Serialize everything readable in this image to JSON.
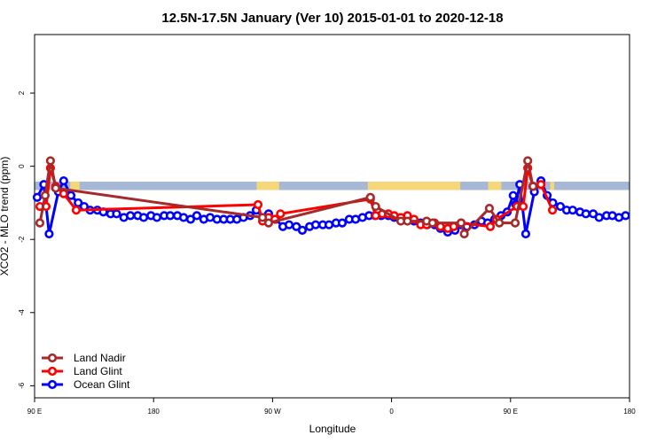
{
  "chart_data": {
    "type": "line",
    "title": "12.5N-17.5N January (Ver 10)   2015-01-01 to 2020-12-18",
    "x_label": "Longitude",
    "y_label": "XCO2 - MLO trend (ppm)",
    "xlim": [
      90,
      540
    ],
    "ylim": [
      -6.33,
      3.6
    ],
    "xticks": [
      {
        "value": 90,
        "label": "90 E"
      },
      {
        "value": 180,
        "label": "180"
      },
      {
        "value": 270,
        "label": "90 W"
      },
      {
        "value": 360,
        "label": "0"
      },
      {
        "value": 450,
        "label": "90 E"
      },
      {
        "value": 540,
        "label": "180"
      }
    ],
    "yticks": [
      2,
      0,
      -2,
      -4,
      -6
    ],
    "legend": "bottom-left",
    "mask_band": {
      "ylim": [
        -0.65,
        -0.42
      ],
      "color": "#a7b8d6",
      "land_color": "#f5d77a",
      "land": [
        [
          117,
          124
        ],
        [
          258,
          275
        ],
        [
          342,
          412
        ],
        [
          433,
          443
        ],
        [
          480,
          483
        ]
      ]
    },
    "series": [
      {
        "name": "Land Nadir",
        "color": "#a52a2a",
        "x": [
          94,
          98,
          102,
          106,
          262.4,
          267,
          344,
          348,
          367,
          372,
          386.5,
          391,
          412.6,
          415,
          434,
          441.5,
          453.5,
          463,
          467
        ],
        "values": [
          -1.55,
          -0.8,
          0.15,
          -0.6,
          -1.4,
          -1.55,
          -0.85,
          -1.1,
          -1.5,
          -1.5,
          -1.5,
          -1.55,
          -1.55,
          -1.85,
          -1.15,
          -1.55,
          -1.55,
          0.15,
          -0.55
        ]
      },
      {
        "name": "Land Glint",
        "color": "#ff0000",
        "x": [
          94,
          98.7,
          102,
          106,
          112,
          121.5,
          259,
          262.4,
          267,
          271.8,
          276,
          344,
          348,
          353,
          357.6,
          362,
          367,
          372,
          377,
          382,
          386.5,
          392.5,
          397,
          402.5,
          407,
          412.6,
          434.7,
          439.4,
          454.9,
          459.6,
          463,
          467,
          473,
          481.7
        ],
        "values": [
          -1.1,
          -1.1,
          -0.05,
          -0.55,
          -0.75,
          -1.2,
          -1.05,
          -1.5,
          -1.4,
          -1.45,
          -1.3,
          -0.9,
          -1.35,
          -1.3,
          -1.3,
          -1.35,
          -1.4,
          -1.35,
          -1.45,
          -1.6,
          -1.6,
          -1.55,
          -1.65,
          -1.7,
          -1.65,
          -1.55,
          -1.65,
          -1.45,
          -1.1,
          -1.1,
          -0.05,
          -0.55,
          -0.5,
          -1.2
        ]
      },
      {
        "name": "Ocean Glint",
        "color": "#0000ff",
        "x": [
          92,
          97,
          101,
          108,
          112,
          117.5,
          123,
          127.5,
          132,
          137.5,
          142,
          147.5,
          152,
          157.5,
          162.5,
          168,
          172.5,
          178,
          182.5,
          188,
          192.6,
          198,
          202.7,
          208,
          212.7,
          218,
          222.8,
          228,
          233,
          238,
          243,
          248,
          253,
          257.7,
          262.4,
          267,
          272.4,
          277.8,
          282.5,
          288,
          292.5,
          298,
          302.6,
          308,
          312.7,
          318,
          322.7,
          328,
          332.8,
          338,
          343,
          347.6,
          352.2,
          357.6,
          362,
          367,
          372,
          377,
          382,
          387,
          392.5,
          397,
          402.5,
          408,
          412.6,
          417,
          422.7,
          428,
          432.7,
          438,
          442.8,
          447.5,
          452,
          454,
          457,
          461.5,
          468,
          473,
          477.7,
          482,
          487.7,
          492.4,
          497,
          502.5,
          507,
          512.5,
          517,
          522.6,
          527,
          532,
          537
        ],
        "values": [
          -0.85,
          -0.5,
          -1.85,
          -0.7,
          -0.4,
          -0.8,
          -1.0,
          -1.1,
          -1.2,
          -1.2,
          -1.25,
          -1.3,
          -1.3,
          -1.4,
          -1.35,
          -1.35,
          -1.4,
          -1.35,
          -1.4,
          -1.35,
          -1.35,
          -1.35,
          -1.4,
          -1.45,
          -1.35,
          -1.45,
          -1.4,
          -1.45,
          -1.45,
          -1.45,
          -1.45,
          -1.4,
          -1.35,
          -1.2,
          -1.4,
          -1.3,
          -1.45,
          -1.65,
          -1.6,
          -1.65,
          -1.75,
          -1.65,
          -1.6,
          -1.6,
          -1.6,
          -1.55,
          -1.55,
          -1.45,
          -1.45,
          -1.4,
          -1.35,
          -1.35,
          -1.35,
          -1.35,
          -1.4,
          -1.45,
          -1.45,
          -1.5,
          -1.55,
          -1.6,
          -1.6,
          -1.7,
          -1.8,
          -1.75,
          -1.6,
          -1.65,
          -1.6,
          -1.5,
          -1.55,
          -1.45,
          -1.35,
          -1.25,
          -0.8,
          -1.05,
          -0.5,
          -1.85,
          -0.7,
          -0.4,
          -0.8,
          -1.0,
          -1.1,
          -1.2,
          -1.2,
          -1.25,
          -1.3,
          -1.3,
          -1.4,
          -1.35,
          -1.35,
          -1.4,
          -1.35
        ]
      }
    ]
  }
}
